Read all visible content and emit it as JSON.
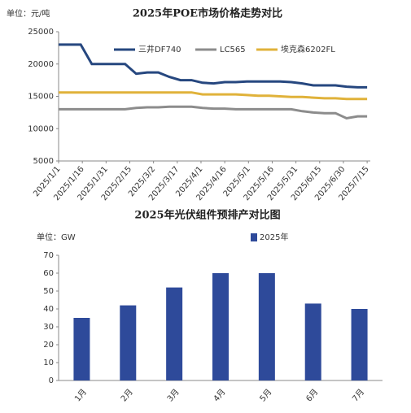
{
  "chart_data": [
    {
      "type": "line",
      "title": "2025年POE市场价格走势对比",
      "unit": "单位：元/吨",
      "x": [
        "2025/1/1",
        "2025/1/8",
        "2025/1/15",
        "2025/1/22",
        "2025/1/29",
        "2025/2/5",
        "2025/2/12",
        "2025/2/19",
        "2025/2/26",
        "2025/3/5",
        "2025/3/12",
        "2025/3/19",
        "2025/3/26",
        "2025/4/2",
        "2025/4/9",
        "2025/4/16",
        "2025/4/23",
        "2025/4/30",
        "2025/5/7",
        "2025/5/14",
        "2025/5/21",
        "2025/5/28",
        "2025/6/4",
        "2025/6/11",
        "2025/6/18",
        "2025/6/25",
        "2025/7/2",
        "2025/7/9",
        "2025/7/15"
      ],
      "series": [
        {
          "name": "三井DF740",
          "color": "#26477f",
          "values": [
            23000,
            23000,
            23000,
            20000,
            20000,
            20000,
            20000,
            18500,
            18700,
            18700,
            18000,
            17500,
            17500,
            17100,
            17000,
            17200,
            17200,
            17300,
            17300,
            17300,
            17300,
            17200,
            17000,
            16700,
            16700,
            16700,
            16500,
            16400,
            16400
          ]
        },
        {
          "name": "LC565",
          "color": "#8c8c8c",
          "values": [
            13000,
            13000,
            13000,
            13000,
            13000,
            13000,
            13000,
            13200,
            13300,
            13300,
            13400,
            13400,
            13400,
            13200,
            13100,
            13100,
            13000,
            13000,
            13000,
            13000,
            13000,
            13000,
            12700,
            12500,
            12400,
            12400,
            11600,
            11900,
            11900
          ]
        },
        {
          "name": "埃克森6202FL",
          "color": "#e0b23a",
          "values": [
            15600,
            15600,
            15600,
            15600,
            15600,
            15600,
            15600,
            15600,
            15600,
            15600,
            15600,
            15600,
            15600,
            15300,
            15300,
            15300,
            15300,
            15200,
            15100,
            15100,
            15000,
            14900,
            14900,
            14800,
            14700,
            14700,
            14600,
            14600,
            14600
          ]
        }
      ],
      "xlim": [
        "2025/1/1",
        "2025/7/17"
      ],
      "xticks": [
        "2025/1/1",
        "2025/1/16",
        "2025/1/31",
        "2025/2/15",
        "2025/3/2",
        "2025/3/17",
        "2025/4/1",
        "2025/4/16",
        "2025/5/1",
        "2025/5/16",
        "2025/5/31",
        "2025/6/15",
        "2025/6/30",
        "2025/7/15"
      ],
      "ylim": [
        5000,
        25000
      ],
      "yticks": [
        5000,
        10000,
        15000,
        20000,
        25000
      ]
    },
    {
      "type": "bar",
      "title": "2025年光伏组件预排产对比图",
      "unit": "单位：GW",
      "categories": [
        "1月",
        "2月",
        "3月",
        "4月",
        "5月",
        "6月",
        "7月"
      ],
      "series": [
        {
          "name": "2025年",
          "color": "#2e4a9a",
          "values": [
            35,
            42,
            52,
            60,
            60,
            43,
            40
          ]
        }
      ],
      "ylim": [
        0,
        70
      ],
      "yticks": [
        0,
        10,
        20,
        30,
        40,
        50,
        60,
        70
      ]
    }
  ]
}
